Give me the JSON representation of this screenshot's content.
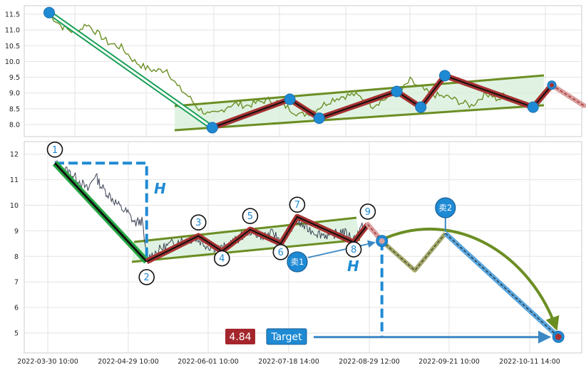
{
  "chart_data": [
    {
      "type": "line",
      "panel": "top",
      "ylim": [
        7.6,
        11.75
      ],
      "yticks": [
        "8.0",
        "8.5",
        "9.0",
        "9.5",
        "10.0",
        "10.5",
        "11.0",
        "11.5"
      ],
      "grid": true,
      "price_series": [
        [
          0,
          11.5
        ],
        [
          5,
          11.1
        ],
        [
          10,
          10.9
        ],
        [
          14,
          11.2
        ],
        [
          18,
          10.9
        ],
        [
          22,
          10.6
        ],
        [
          27,
          10.45
        ],
        [
          32,
          10.0
        ],
        [
          36,
          9.8
        ],
        [
          40,
          9.7
        ],
        [
          44,
          9.75
        ],
        [
          48,
          9.2
        ],
        [
          52,
          8.9
        ],
        [
          56,
          8.5
        ],
        [
          60,
          8.3
        ],
        [
          63,
          8.35
        ],
        [
          67,
          8.6
        ],
        [
          70,
          8.65
        ],
        [
          74,
          8.6
        ],
        [
          78,
          8.7
        ],
        [
          82,
          8.78
        ],
        [
          86,
          8.7
        ],
        [
          90,
          8.5
        ],
        [
          94,
          8.3
        ],
        [
          98,
          8.4
        ],
        [
          102,
          8.6
        ],
        [
          106,
          8.8
        ],
        [
          110,
          8.9
        ],
        [
          114,
          8.95
        ],
        [
          118,
          8.8
        ],
        [
          121,
          8.6
        ],
        [
          124,
          8.75
        ],
        [
          128,
          8.9
        ],
        [
          132,
          9.1
        ],
        [
          135,
          9.4
        ],
        [
          138,
          9.2
        ],
        [
          142,
          9.0
        ],
        [
          146,
          8.9
        ],
        [
          150,
          8.85
        ],
        [
          154,
          8.7
        ],
        [
          158,
          8.6
        ],
        [
          162,
          8.9
        ],
        [
          165,
          9.0
        ],
        [
          168,
          8.75
        ],
        [
          171,
          9.05
        ]
      ],
      "trend_points": [
        {
          "x": 0,
          "y": 11.55
        },
        {
          "x": 61,
          "y": 7.9
        },
        {
          "x": 90,
          "y": 8.8
        },
        {
          "x": 101,
          "y": 8.2
        },
        {
          "x": 130,
          "y": 9.05
        },
        {
          "x": 139,
          "y": 8.55
        },
        {
          "x": 148,
          "y": 9.55
        },
        {
          "x": 181,
          "y": 8.55
        },
        {
          "x": 188,
          "y": 9.25
        }
      ],
      "projection_end": {
        "x": 200,
        "y": 8.6
      }
    },
    {
      "type": "line",
      "panel": "bottom",
      "ylim": [
        4.25,
        12.5
      ],
      "yticks": [
        "5",
        "6",
        "7",
        "8",
        "9",
        "10",
        "11",
        "12"
      ],
      "grid": true,
      "xticks": [
        "2022-03-30 10:00",
        "2022-04-29 10:00",
        "2022-06-01 10:00",
        "2022-07-18 14:00",
        "2022-08-29 12:00",
        "2022-09-21 10:00",
        "2022-10-11 14:00"
      ],
      "points": [
        {
          "label": "1",
          "x": 0,
          "y": 11.65
        },
        {
          "label": "2",
          "x": 39,
          "y": 7.8
        },
        {
          "label": "3",
          "x": 61,
          "y": 8.8
        },
        {
          "label": "4",
          "x": 71,
          "y": 8.2
        },
        {
          "label": "5",
          "x": 83,
          "y": 9.05
        },
        {
          "label": "6",
          "x": 96,
          "y": 8.5
        },
        {
          "label": "7",
          "x": 103,
          "y": 9.55
        },
        {
          "label": "8",
          "x": 127,
          "y": 8.55
        },
        {
          "label": "9",
          "x": 133,
          "y": 9.25
        }
      ],
      "breakout": {
        "x": 139,
        "y": 8.6
      },
      "forecast": [
        {
          "x": 139,
          "y": 8.6
        },
        {
          "x": 153,
          "y": 7.45
        },
        {
          "x": 166,
          "y": 8.9
        },
        {
          "x": 214,
          "y": 4.85
        }
      ],
      "sell2": {
        "label": "卖2",
        "x": 166,
        "y": 8.9
      },
      "sell1": {
        "label": "卖1"
      },
      "height_label": "H",
      "target_label": "Target",
      "target_value": "4.84",
      "target_y": 4.84
    }
  ],
  "colors": {
    "trend_red": "#a83232",
    "channel_green": "#6b8e23",
    "price_green": "#6b8e23",
    "channel_fill": "#d6efd9",
    "marker_blue": "#1f8ad4",
    "dash_blue": "#1f8ad4",
    "value_badge": "#a4262c",
    "target_badge": "#1f8ad4",
    "forecast_khaki": "#a3a86a",
    "forecast_blue": "#5aa6dd",
    "down_green": "#1a9e55"
  }
}
